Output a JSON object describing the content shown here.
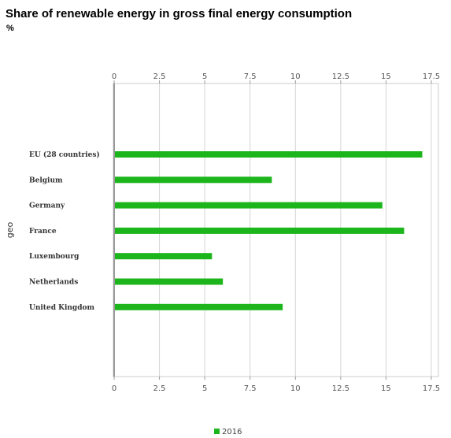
{
  "header": {
    "title": "Share of renewable energy in gross final energy consumption",
    "unit": "%"
  },
  "chart_data": {
    "type": "bar",
    "orientation": "horizontal",
    "title": "Share of renewable energy in gross final energy consumption",
    "subtitle": "%",
    "xlabel": "",
    "ylabel": "geo",
    "xlim": [
      0,
      17.5
    ],
    "x_ticks": [
      "0",
      "2.5",
      "5",
      "7.5",
      "10",
      "12.5",
      "15",
      "17.5"
    ],
    "categories": [
      "EU (28 countries)",
      "Belgium",
      "Germany",
      "France",
      "Luxembourg",
      "Netherlands",
      "United Kingdom"
    ],
    "series": [
      {
        "name": "2016",
        "values": [
          17.0,
          8.7,
          14.8,
          16.0,
          5.4,
          6.0,
          9.3
        ],
        "color": "#1cb51c"
      }
    ],
    "grid": true,
    "legend_position": "bottom-center"
  }
}
